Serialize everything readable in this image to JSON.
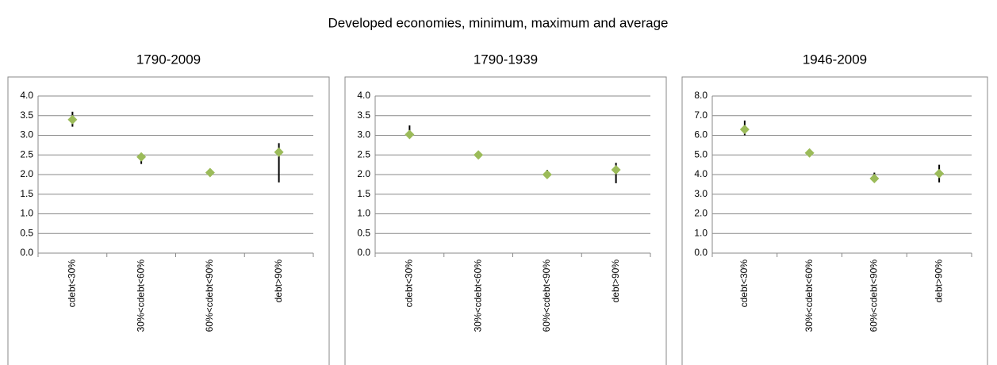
{
  "title": "Developed economies, minimum, maximum and average",
  "chart_data": [
    {
      "type": "range",
      "title": "1790-2009",
      "categories": [
        "cdebt<30%",
        "30%<cdebt<60%",
        "60%<cdebt<90%",
        "debt>90%"
      ],
      "color": "#9bbb59",
      "values": [
        3.4,
        2.45,
        2.05,
        2.57
      ],
      "min": [
        3.22,
        2.27,
        2.0,
        1.8
      ],
      "max": [
        3.6,
        2.52,
        2.1,
        2.8
      ],
      "ylim": [
        0,
        4
      ],
      "yticks": [
        {
          "value": 0,
          "label": "0.0"
        },
        {
          "value": 0.5,
          "label": "0.5"
        },
        {
          "value": 1,
          "label": "1.0"
        },
        {
          "value": 1.5,
          "label": "1.5"
        },
        {
          "value": 2,
          "label": "2.0"
        },
        {
          "value": 2.5,
          "label": "2.5"
        },
        {
          "value": 3,
          "label": "3.0"
        },
        {
          "value": 3.5,
          "label": "3.5"
        },
        {
          "value": 4,
          "label": "4.0"
        }
      ],
      "grid": true
    },
    {
      "type": "range",
      "title": "1790-1939",
      "categories": [
        "cdebt<30%",
        "30%<cdebt<60%",
        "60%<cdebt<90%",
        "debt>90%"
      ],
      "color": "#9bbb59",
      "values": [
        3.02,
        2.5,
        2.0,
        2.12
      ],
      "min": [
        2.95,
        2.45,
        1.95,
        1.78
      ],
      "max": [
        3.25,
        2.55,
        2.12,
        2.3
      ],
      "ylim": [
        0,
        4
      ],
      "yticks": [
        {
          "value": 0,
          "label": "0.0"
        },
        {
          "value": 0.5,
          "label": "0.5"
        },
        {
          "value": 1,
          "label": "1.0"
        },
        {
          "value": 1.5,
          "label": "1.5"
        },
        {
          "value": 2,
          "label": "2.0"
        },
        {
          "value": 2.5,
          "label": "2.5"
        },
        {
          "value": 3,
          "label": "3.0"
        },
        {
          "value": 3.5,
          "label": "3.5"
        },
        {
          "value": 4,
          "label": "4.0"
        }
      ],
      "grid": true
    },
    {
      "type": "range",
      "title": "1946-2009",
      "categories": [
        "cdebt<30%",
        "30%<cdebt<60%",
        "60%<cdebt<90%",
        "debt>90%"
      ],
      "color": "#9bbb59",
      "values": [
        6.3,
        5.1,
        3.8,
        4.05
      ],
      "min": [
        6.0,
        5.0,
        3.7,
        3.6
      ],
      "max": [
        6.75,
        5.25,
        4.1,
        4.5
      ],
      "ylim": [
        0,
        8
      ],
      "yticks": [
        {
          "value": 0,
          "label": "0.0"
        },
        {
          "value": 1,
          "label": "1.0"
        },
        {
          "value": 2,
          "label": "2.0"
        },
        {
          "value": 3,
          "label": "3.0"
        },
        {
          "value": 4,
          "label": "4.0"
        },
        {
          "value": 5,
          "label": "5.0"
        },
        {
          "value": 6,
          "label": "6.0"
        },
        {
          "value": 7,
          "label": "7.0"
        },
        {
          "value": 8,
          "label": "8.0"
        }
      ],
      "grid": true
    }
  ]
}
